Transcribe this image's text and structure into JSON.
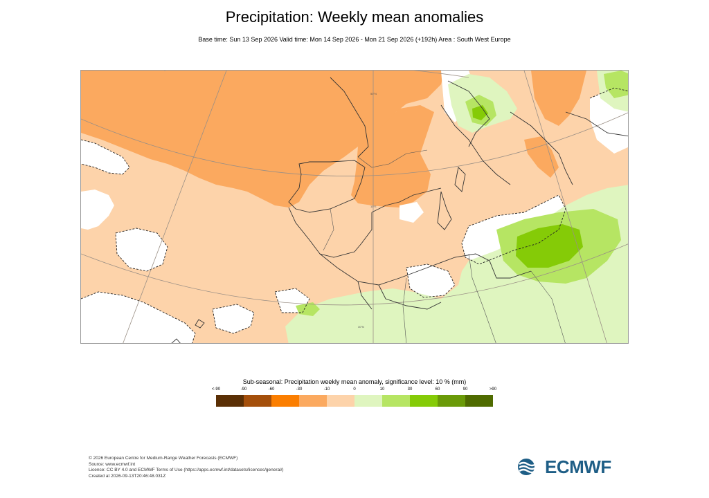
{
  "header": {
    "title": "Precipitation: Weekly mean anomalies",
    "subtitle": "Base time: Sun 13 Sep 2026 Valid time: Mon 14 Sep 2026 - Mon 21 Sep 2026 (+192h) Area : South West Europe"
  },
  "map": {
    "region": "South West Europe",
    "graticule_labels": [
      "30°N",
      "10°E",
      "50°N"
    ]
  },
  "legend": {
    "title": "Sub-seasonal: Precipitation weekly mean anomaly, significance level: 10 % (mm)",
    "labels": [
      "<-90",
      "-90",
      "-60",
      "-30",
      "-10",
      "0",
      "10",
      "30",
      "60",
      "90",
      ">90"
    ],
    "colors": [
      "#5a2f05",
      "#a44f0b",
      "#fb7e00",
      "#fba95f",
      "#fdd3aa",
      "#dff5bf",
      "#b6e563",
      "#85cb07",
      "#6a9a08",
      "#4f6b00"
    ]
  },
  "footer": {
    "line1": "© 2026 European Centre for Medium-Range Weather Forecasts (ECMWF)",
    "line2": "Source: www.ecmwf.int",
    "line3": "Licence: CC BY 4.0 and ECMWF Terms of Use (https://apps.ecmwf.int/datasets/licences/general/)",
    "line4": "Created at 2026-09-13T20:46:48.031Z"
  },
  "logo": {
    "text": "ECMWF",
    "color": "#1e5e86"
  }
}
